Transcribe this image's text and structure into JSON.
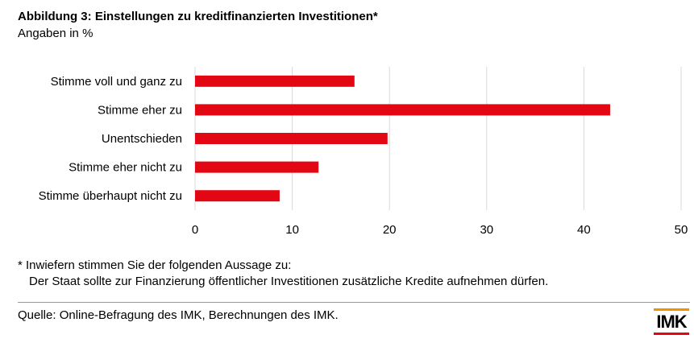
{
  "chart_data": {
    "type": "bar",
    "orientation": "horizontal",
    "title": "Abbildung 3: Einstellungen zu kreditfinanzierten Investitionen*",
    "subtitle": "Angaben in %",
    "categories": [
      "Stimme voll und ganz zu",
      "Stimme eher zu",
      "Unentschieden",
      "Stimme eher nicht zu",
      "Stimme überhaupt nicht zu"
    ],
    "values": [
      16.4,
      42.7,
      19.8,
      12.7,
      8.7
    ],
    "xlim": [
      0,
      50
    ],
    "xticks": [
      "0",
      "10",
      "20",
      "30",
      "40",
      "50"
    ],
    "grid": true,
    "bar_color": "#e30613"
  },
  "footnote": {
    "line1": "* Inwiefern stimmen Sie der folgenden Aussage zu:",
    "line2": "Der Staat sollte zur Finanzierung öffentlicher Investitionen zusätzliche Kredite aufnehmen dürfen."
  },
  "source": "Quelle: Online-Befragung des IMK, Berechnungen des IMK.",
  "logo": "IMK"
}
